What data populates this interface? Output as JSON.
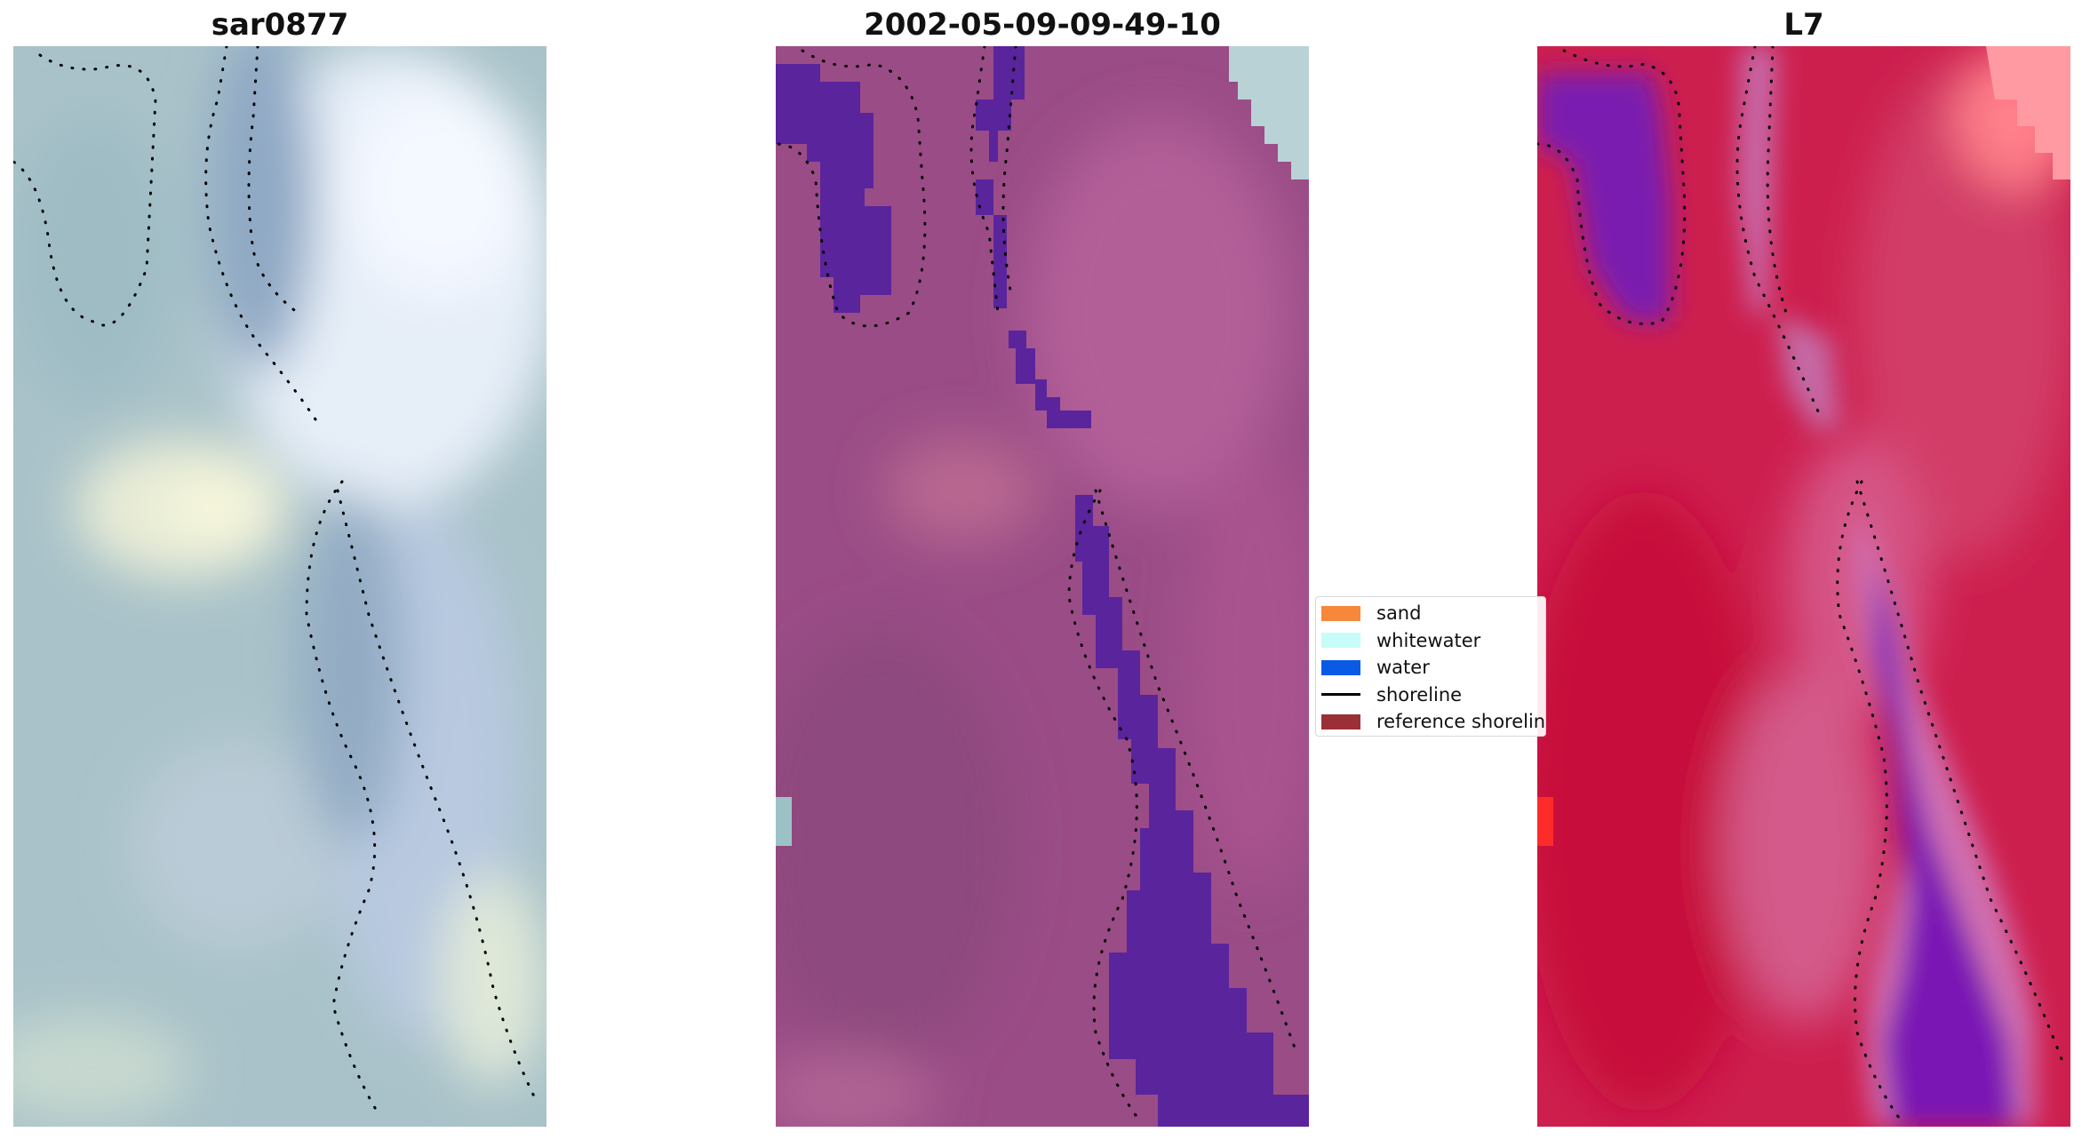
{
  "panels": [
    {
      "title": "sar0877",
      "image_name": "rgb-composite"
    },
    {
      "title": "2002-05-09-09-49-10",
      "image_name": "classified-overlay"
    },
    {
      "title": "L7",
      "image_name": "index-map"
    }
  ],
  "legend": {
    "items": [
      {
        "label": "sand",
        "color": "#f7883b",
        "kind": "patch"
      },
      {
        "label": "whitewater",
        "color": "#c8fcf8",
        "kind": "patch"
      },
      {
        "label": "water",
        "color": "#0a5ae8",
        "kind": "patch"
      },
      {
        "label": "shoreline",
        "color": "#000000",
        "kind": "line"
      },
      {
        "label": "reference shoreline",
        "color": "#9a2f36",
        "kind": "patch"
      }
    ]
  },
  "colors": {
    "rgb_base": "#a8c0c8",
    "overlay_base": "#9b4c86",
    "overlay_water": "#5a249c",
    "index_base": "#cc1f4e",
    "index_water": "#6a0fa8"
  }
}
